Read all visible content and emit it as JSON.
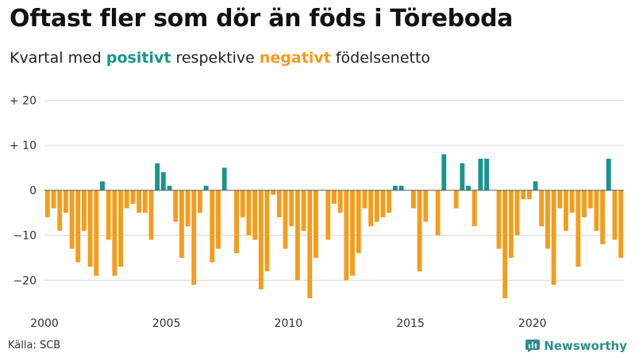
{
  "title": "Oftast fler som dör än föds i Töreboda",
  "subtitle": {
    "prefix": "Kvartal med ",
    "positive": "positivt",
    "middle": " respektive ",
    "negative": "negativt",
    "suffix": " födelsenetto"
  },
  "colors": {
    "positive": "#16968a",
    "negative": "#f59c1a",
    "grid": "#d9d9d9",
    "axis": "#555555"
  },
  "source": "Källa: SCB",
  "brand": {
    "name": "Newsworthy",
    "icon": "bar-chart-icon"
  },
  "chart_data": {
    "type": "bar",
    "title": "Oftast fler som dör än föds i Töreboda",
    "xlabel": "",
    "ylabel": "",
    "ylim": [
      -27,
      22
    ],
    "yticks": [
      20,
      10,
      0,
      -10,
      -20
    ],
    "ytick_labels": [
      "+ 20",
      "+ 10",
      "0",
      "−10",
      "−20"
    ],
    "xtick_years": [
      2000,
      2005,
      2010,
      2015,
      2020
    ],
    "xtick_labels": [
      "2000",
      "2005",
      "2010",
      "2015",
      "2020"
    ],
    "start": "2000 Q1",
    "frequency": "quarterly",
    "values": [
      -6,
      -4,
      -9,
      -5,
      -13,
      -16,
      -9,
      -17,
      -19,
      2,
      -11,
      -19,
      -17,
      -4,
      -3,
      -5,
      -5,
      -11,
      6,
      4,
      1,
      -7,
      -15,
      -8,
      -21,
      -5,
      1,
      -16,
      -13,
      5,
      0,
      -14,
      -6,
      -10,
      -11,
      -22,
      -18,
      -1,
      -6,
      -13,
      -8,
      -20,
      -9,
      -24,
      -15,
      0,
      -11,
      -3,
      -5,
      -20,
      -19,
      -14,
      -4,
      -8,
      -7,
      -6,
      -5,
      1,
      1,
      0,
      -4,
      -18,
      -7,
      0,
      -10,
      8,
      0,
      -4,
      6,
      1,
      -8,
      7,
      7,
      0,
      -13,
      -24,
      -15,
      -10,
      -2,
      -2,
      2,
      -8,
      -13,
      -21,
      -4,
      -9,
      -5,
      -17,
      -6,
      -4,
      -9,
      -12,
      7,
      -11,
      -15
    ]
  }
}
